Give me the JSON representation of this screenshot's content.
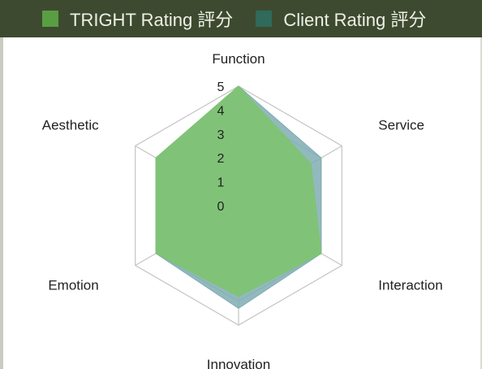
{
  "chart_data": {
    "type": "radar",
    "title": "",
    "axes": [
      "Function",
      "Service",
      "Interaction",
      "Innovation",
      "Emotion",
      "Aesthetic"
    ],
    "ticks": [
      "0",
      "1",
      "2",
      "3",
      "4",
      "5"
    ],
    "range": [
      0,
      5
    ],
    "legend_position": "top",
    "series": [
      {
        "name": "TRIGHT Rating 評分",
        "values": [
          5,
          3.5,
          4.0,
          3.8,
          4.0,
          4.0
        ],
        "color": "#7cc46c",
        "fill_opacity": 0.85,
        "legend_color": "#5a9e44"
      },
      {
        "name": "Client Rating 評分",
        "values": [
          5,
          4.0,
          4.0,
          4.3,
          4.0,
          4.0
        ],
        "color": "#7fadb3",
        "fill_opacity": 0.85,
        "legend_color": "#2f6a5a"
      }
    ]
  }
}
